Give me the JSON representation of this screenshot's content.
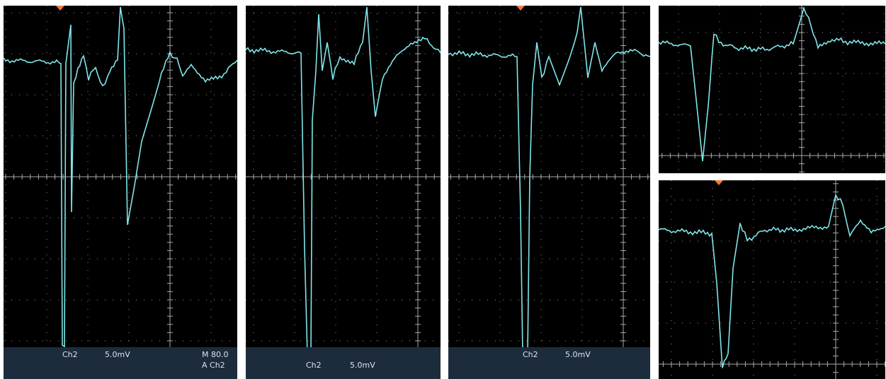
{
  "panels": [
    {
      "channel": "Ch2",
      "scale": "5.0mV",
      "timebase": "M 80.0",
      "trigger": "A Ch2"
    },
    {
      "channel": "Ch2",
      "scale": "5.0mV"
    },
    {
      "channel": "Ch2",
      "scale": "5.0mV"
    }
  ]
}
